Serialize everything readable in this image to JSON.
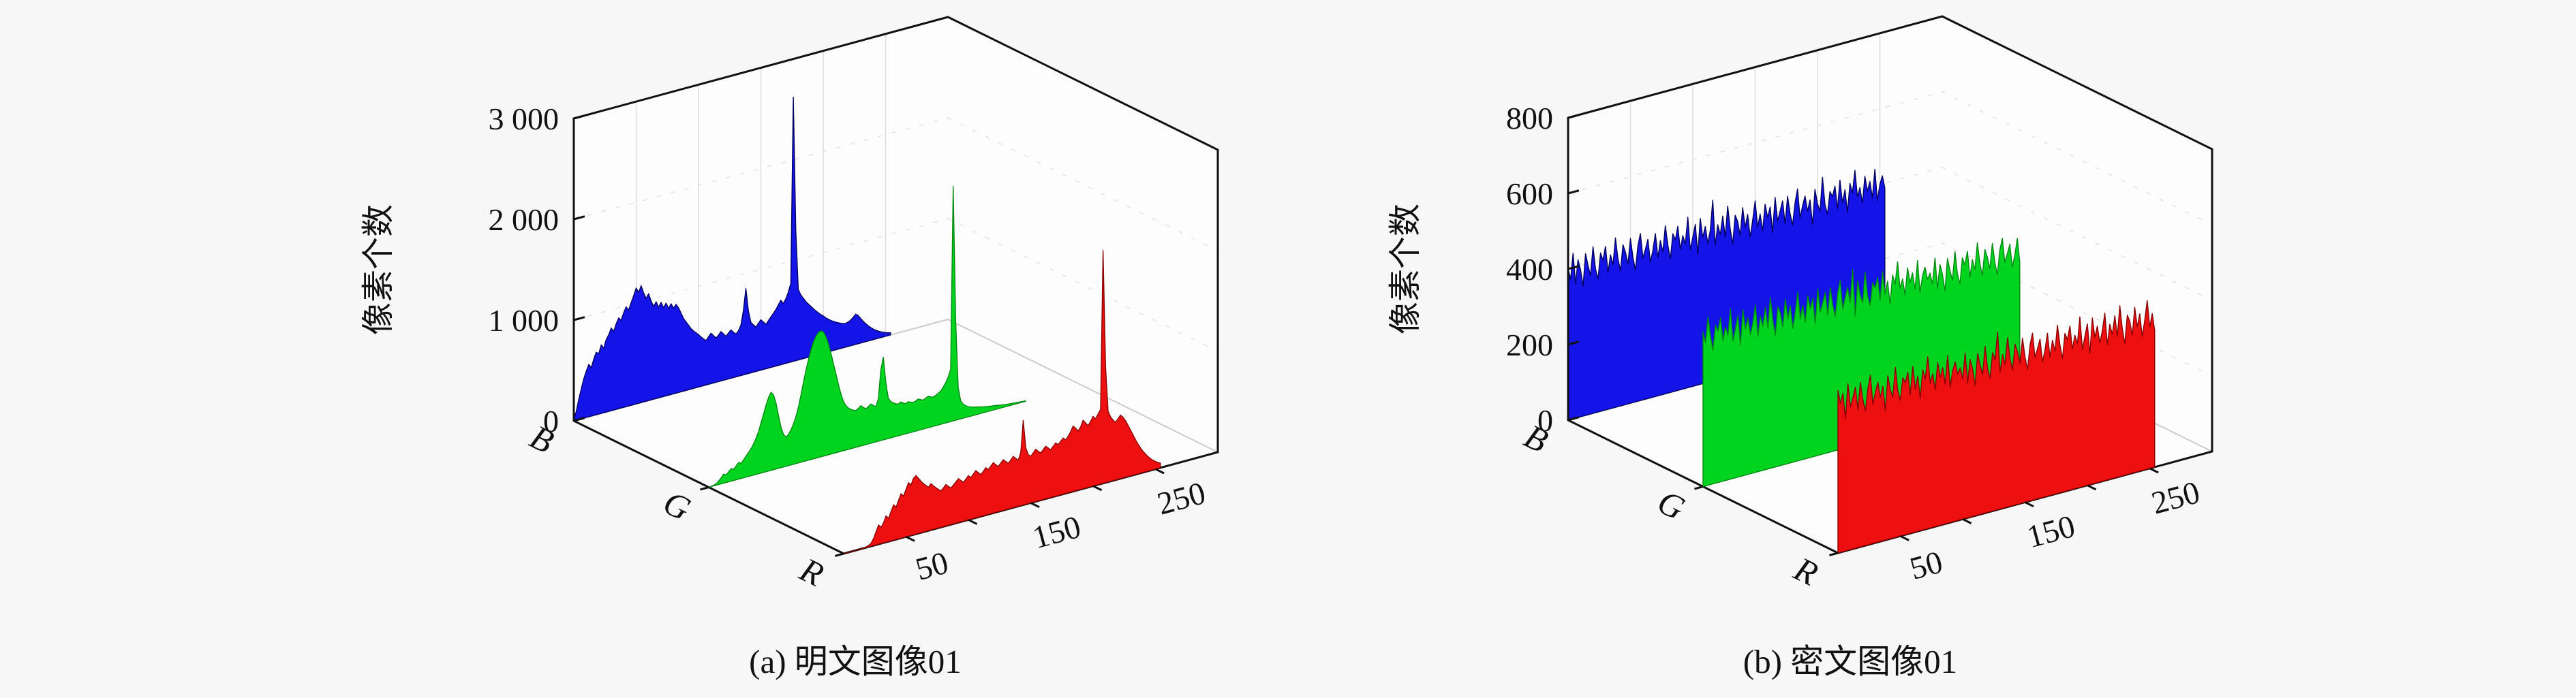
{
  "page": {
    "background": "#f7f7f7",
    "wall_color": "#fdfdfd",
    "box_color": "#111111",
    "grid_color": "#dedede",
    "grid_dash_color": "#e4e4e4",
    "floor_edge_color": "#cccccc"
  },
  "chart_data": [
    {
      "type": "area3d",
      "title": "(a) 明文图像01",
      "zlabel": "像素个数",
      "xlim": [
        0,
        300
      ],
      "zlim": [
        0,
        3000
      ],
      "xticks_labeled": [
        50,
        150,
        250
      ],
      "xtick_minor_step": 50,
      "zticks": [
        {
          "v": 0,
          "label": "0"
        },
        {
          "v": 1000,
          "label": "1 000"
        },
        {
          "v": 2000,
          "label": "2 000"
        },
        {
          "v": 3000,
          "label": "3 000"
        }
      ],
      "rows": [
        "B",
        "G",
        "R"
      ],
      "sample_start": 0,
      "sample_step": 2,
      "series": [
        {
          "name": "B",
          "color": "#1414e8",
          "edge": "#000060",
          "values": [
            15,
            90,
            200,
            300,
            390,
            460,
            520,
            480,
            560,
            620,
            600,
            680,
            640,
            720,
            760,
            820,
            780,
            850,
            900,
            870,
            940,
            990,
            950,
            1020,
            1080,
            1150,
            1100,
            1160,
            1080,
            1020,
            1060,
            980,
            920,
            960,
            900,
            940,
            880,
            920,
            860,
            900,
            850,
            880,
            840,
            780,
            720,
            680,
            640,
            600,
            570,
            545,
            520,
            490,
            465,
            440,
            470,
            500,
            470,
            440,
            460,
            490,
            460,
            430,
            455,
            480,
            450,
            425,
            450,
            500,
            640,
            850,
            620,
            500,
            470,
            440,
            470,
            500,
            470,
            440,
            470,
            500,
            530,
            560,
            600,
            640,
            600,
            640,
            700,
            780,
            2620,
            1300,
            700,
            640,
            600,
            560,
            530,
            500,
            470,
            440,
            415,
            390,
            370,
            345,
            325,
            305,
            290,
            275,
            262,
            250,
            240,
            235,
            242,
            255,
            275,
            300,
            280,
            245,
            210,
            180,
            152,
            128,
            106,
            88,
            72,
            58,
            46,
            36,
            28,
            22
          ]
        },
        {
          "name": "G",
          "color": "#00d41e",
          "edge": "#008a10",
          "values": [
            0,
            2,
            6,
            15,
            35,
            60,
            90,
            75,
            100,
            125,
            110,
            140,
            165,
            150,
            180,
            210,
            240,
            270,
            310,
            360,
            420,
            500,
            580,
            660,
            730,
            775,
            740,
            650,
            520,
            400,
            320,
            290,
            310,
            350,
            400,
            470,
            560,
            670,
            790,
            900,
            1000,
            1090,
            1160,
            1210,
            1240,
            1250,
            1230,
            1180,
            1100,
            1000,
            890,
            780,
            670,
            570,
            490,
            440,
            410,
            390,
            375,
            365,
            380,
            400,
            375,
            355,
            370,
            390,
            368,
            350,
            420,
            700,
            820,
            560,
            400,
            360,
            340,
            325,
            315,
            330,
            310,
            300,
            312,
            300,
            290,
            300,
            312,
            298,
            288,
            300,
            312,
            300,
            290,
            302,
            315,
            330,
            360,
            400,
            450,
            520,
            2330,
            1000,
            320,
            180,
            140,
            118,
            102,
            92,
            84,
            78,
            72,
            66,
            60,
            55,
            50,
            46,
            42,
            38,
            34,
            30,
            26,
            23,
            20,
            17,
            14,
            12,
            10,
            8,
            6,
            5
          ]
        },
        {
          "name": "R",
          "color": "#ee1010",
          "edge": "#8a0000",
          "values": [
            0,
            0,
            0,
            0,
            0,
            0,
            0,
            0,
            2,
            6,
            14,
            30,
            70,
            130,
            190,
            160,
            200,
            260,
            230,
            290,
            350,
            320,
            380,
            440,
            410,
            470,
            530,
            500,
            560,
            580,
            545,
            510,
            480,
            455,
            430,
            460,
            430,
            405,
            382,
            360,
            385,
            410,
            385,
            362,
            385,
            410,
            435,
            410,
            385,
            410,
            438,
            412,
            440,
            468,
            440,
            415,
            442,
            470,
            445,
            472,
            500,
            472,
            448,
            475,
            502,
            478,
            452,
            480,
            508,
            482,
            458,
            528,
            840,
            560,
            486,
            462,
            490,
            518,
            492,
            468,
            495,
            522,
            498,
            474,
            500,
            528,
            504,
            530,
            556,
            532,
            560,
            600,
            648,
            620,
            585,
            620,
            680,
            645,
            612,
            648,
            690,
            660,
            700,
            740,
            2310,
            1150,
            700,
            640,
            600,
            572,
            600,
            630,
            600,
            560,
            510,
            455,
            400,
            345,
            295,
            250,
            210,
            175,
            145,
            118,
            95,
            75,
            58,
            45
          ]
        }
      ]
    },
    {
      "type": "area3d",
      "title": "(b) 密文图像01",
      "zlabel": "像素个数",
      "xlim": [
        0,
        300
      ],
      "zlim": [
        0,
        800
      ],
      "xticks_labeled": [
        50,
        150,
        250
      ],
      "xtick_minor_step": 50,
      "zticks": [
        {
          "v": 0,
          "label": "0"
        },
        {
          "v": 200,
          "label": "200"
        },
        {
          "v": 400,
          "label": "400"
        },
        {
          "v": 600,
          "label": "600"
        },
        {
          "v": 800,
          "label": "800"
        }
      ],
      "rows": [
        "B",
        "G",
        "R"
      ],
      "sample_start": 0,
      "sample_step": 2,
      "series": [
        {
          "name": "B",
          "color": "#1414e8",
          "edge": "#000060",
          "values": [
            402,
            371,
            438,
            356,
            417,
            389,
            344,
            428,
            395,
            367,
            441,
            380,
            352,
            419,
            398,
            433,
            362,
            407,
            379,
            448,
            391,
            358,
            425,
            403,
            370,
            436,
            384,
            349,
            412,
            442,
            376,
            397,
            421,
            359,
            388,
            431,
            366,
            409,
            378,
            445,
            392,
            353,
            418,
            400,
            434,
            371,
            406,
            382,
            451,
            363,
            395,
            427,
            347,
            439,
            386,
            414,
            368,
            399,
            478,
            357,
            410,
            381,
            429,
            372,
            452,
            390,
            348,
            422,
            404,
            365,
            437,
            383,
            416,
            354,
            396,
            446,
            374,
            408,
            361,
            430,
            393,
            419,
            350,
            441,
            377,
            401,
            426,
            364,
            435,
            388,
            355,
            413,
            447,
            369,
            398,
            423,
            381,
            409,
            342,
            433,
            394,
            372,
            460,
            386,
            359,
            417,
            402,
            428,
            366,
            440,
            378,
            411,
            349,
            424,
            397,
            455,
            383,
            406,
            362,
            432,
            391,
            415,
            370,
            444,
            358,
            400,
            421,
            387
          ]
        },
        {
          "name": "G",
          "color": "#00d41e",
          "edge": "#008a10",
          "values": [
            409,
            378,
            445,
            392,
            353,
            418,
            400,
            434,
            371,
            406,
            382,
            451,
            363,
            395,
            427,
            347,
            439,
            386,
            414,
            368,
            399,
            443,
            357,
            410,
            381,
            429,
            372,
            452,
            390,
            348,
            422,
            404,
            365,
            437,
            383,
            416,
            354,
            396,
            446,
            374,
            408,
            361,
            430,
            393,
            419,
            350,
            441,
            377,
            401,
            426,
            364,
            435,
            388,
            355,
            413,
            447,
            369,
            398,
            423,
            381,
            467,
            342,
            433,
            394,
            372,
            450,
            386,
            359,
            417,
            402,
            428,
            366,
            440,
            378,
            411,
            349,
            424,
            397,
            455,
            383,
            406,
            362,
            432,
            391,
            415,
            370,
            444,
            358,
            400,
            421,
            387,
            402,
            371,
            438,
            356,
            417,
            389,
            344,
            428,
            395,
            367,
            441,
            380,
            352,
            419,
            398,
            433,
            362,
            407,
            379,
            448,
            391,
            358,
            425,
            403,
            370,
            436,
            384,
            349,
            412,
            442,
            376,
            397,
            421,
            359,
            388,
            431,
            366
          ]
        },
        {
          "name": "R",
          "color": "#ee1010",
          "edge": "#8a0000",
          "values": [
            430,
            393,
            419,
            350,
            441,
            377,
            401,
            426,
            364,
            435,
            388,
            355,
            413,
            447,
            369,
            398,
            423,
            381,
            409,
            342,
            433,
            394,
            372,
            450,
            386,
            359,
            417,
            402,
            428,
            366,
            440,
            378,
            411,
            349,
            424,
            397,
            455,
            383,
            406,
            362,
            432,
            391,
            415,
            370,
            444,
            358,
            400,
            421,
            387,
            402,
            371,
            438,
            356,
            417,
            389,
            344,
            428,
            395,
            367,
            441,
            380,
            352,
            419,
            398,
            470,
            362,
            407,
            379,
            448,
            391,
            358,
            425,
            403,
            370,
            436,
            384,
            349,
            412,
            442,
            376,
            397,
            421,
            359,
            388,
            431,
            366,
            409,
            378,
            445,
            392,
            353,
            418,
            400,
            434,
            371,
            406,
            382,
            451,
            363,
            395,
            427,
            347,
            439,
            386,
            414,
            368,
            399,
            443,
            357,
            410,
            381,
            429,
            372,
            452,
            390,
            348,
            422,
            404,
            365,
            437,
            383,
            416,
            354,
            396,
            446,
            374,
            408,
            361
          ]
        }
      ]
    }
  ]
}
